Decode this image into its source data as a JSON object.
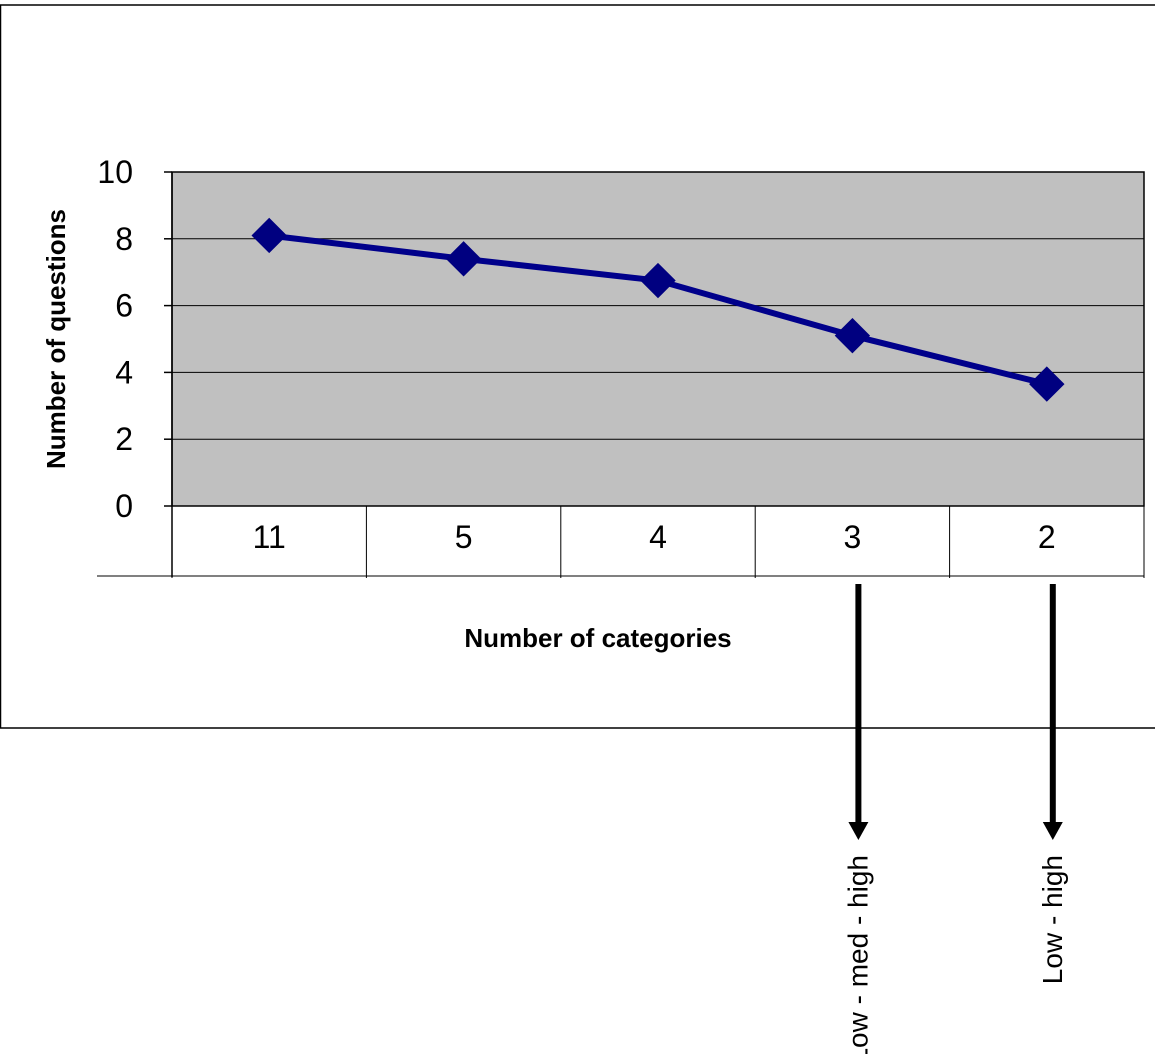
{
  "chart_data": {
    "type": "line",
    "categories": [
      "11",
      "5",
      "4",
      "3",
      "2"
    ],
    "series": [
      {
        "values": [
          8.1,
          7.4,
          6.75,
          5.1,
          3.65
        ]
      }
    ],
    "xlabel": "Number of categories",
    "ylabel": "Number of questions",
    "ylim": [
      0,
      10
    ],
    "yticks": [
      "0",
      "2",
      "4",
      "6",
      "8",
      "10"
    ],
    "grid": true,
    "legend": "none",
    "annotations": [
      {
        "category": "3",
        "text": "Low - med - high"
      },
      {
        "category": "2",
        "text": "Low - high"
      }
    ],
    "colors": {
      "line": "#00008B",
      "marker": "#000080",
      "plot_background": "#C0C0C0",
      "gridline": "#000000"
    }
  }
}
